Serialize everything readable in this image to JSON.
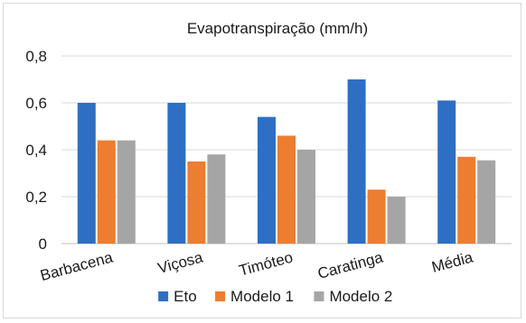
{
  "chart_data": {
    "type": "bar",
    "title": "Evapotranspiração (mm/h)",
    "categories": [
      "Barbacena",
      "Viçosa",
      "Timóteo",
      "Caratinga",
      "Média"
    ],
    "series": [
      {
        "name": "Eto",
        "color": "#2e6fc4",
        "values": [
          0.6,
          0.6,
          0.54,
          0.7,
          0.61
        ]
      },
      {
        "name": "Modelo 1",
        "color": "#ed7d31",
        "values": [
          0.44,
          0.35,
          0.46,
          0.23,
          0.37
        ]
      },
      {
        "name": "Modelo 2",
        "color": "#a5a5a5",
        "values": [
          0.44,
          0.38,
          0.4,
          0.2,
          0.355
        ]
      }
    ],
    "y_ticks": [
      "0",
      "0,2",
      "0,4",
      "0,6",
      "0,8"
    ],
    "ylim": [
      0,
      0.8
    ],
    "grid": true,
    "legend_position": "bottom"
  }
}
